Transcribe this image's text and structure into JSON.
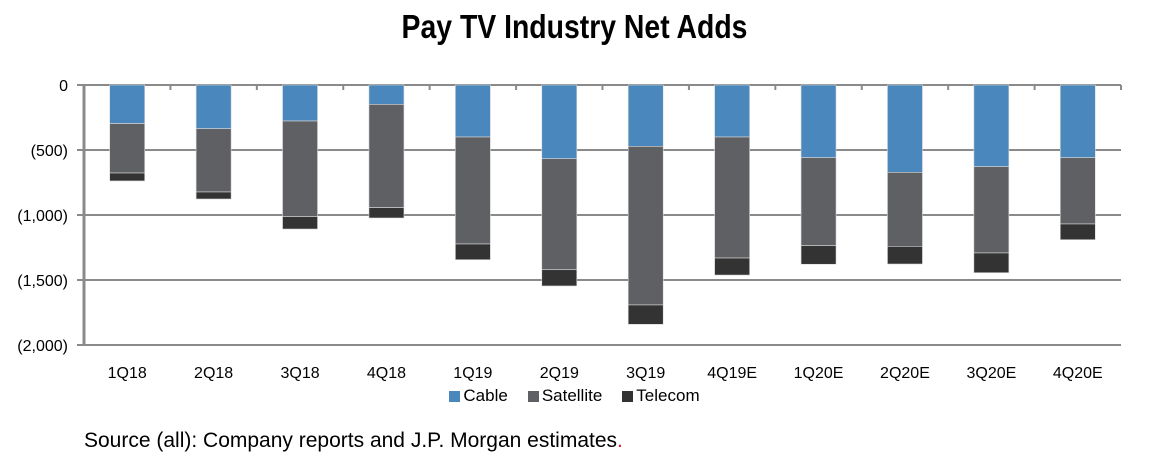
{
  "chart_data": {
    "type": "bar",
    "stacked": true,
    "title": "Pay TV Industry Net Adds",
    "xlabel": "",
    "ylabel": "",
    "ylim": [
      -2000,
      0
    ],
    "yticks": [
      0,
      -500,
      -1000,
      -1500,
      -2000
    ],
    "ytick_labels": [
      "0",
      "(500)",
      "(1,000)",
      "(1,500)",
      "(2,000)"
    ],
    "grid": true,
    "legend_position": "bottom",
    "categories": [
      "1Q18",
      "2Q18",
      "3Q18",
      "4Q18",
      "1Q19",
      "2Q19",
      "3Q19",
      "4Q19E",
      "1Q20E",
      "2Q20E",
      "3Q20E",
      "4Q20E"
    ],
    "series": [
      {
        "name": "Cable",
        "color": "#4a87bd",
        "values": [
          -297,
          -336,
          -277,
          -149,
          -400,
          -567,
          -472,
          -400,
          -559,
          -672,
          -628,
          -559
        ]
      },
      {
        "name": "Satellite",
        "color": "#5f6064",
        "values": [
          -380,
          -487,
          -736,
          -794,
          -823,
          -854,
          -1220,
          -931,
          -677,
          -569,
          -664,
          -510
        ]
      },
      {
        "name": "Telecom",
        "color": "#333333",
        "values": [
          -61,
          -54,
          -95,
          -80,
          -121,
          -125,
          -149,
          -131,
          -143,
          -136,
          -152,
          -121
        ]
      }
    ]
  },
  "source": {
    "text": "Source (all): Company reports and J.P. Morgan estimates",
    "trailing": "."
  }
}
